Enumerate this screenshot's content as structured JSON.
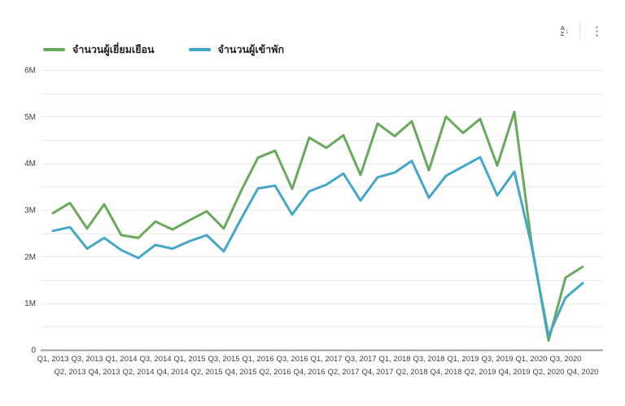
{
  "toolbar": {
    "sort_icon": {
      "top": "A",
      "bottom": "Z",
      "arrow": "↓"
    },
    "menu_icon": "⋮"
  },
  "legend": {
    "items": [
      {
        "label": "จำนวนผู้เยี่ยมเยือน",
        "color": "#68a95c"
      },
      {
        "label": "จำนวนผู้เข้าพัก",
        "color": "#45a7c7"
      }
    ]
  },
  "chart_data": {
    "type": "line",
    "title": "",
    "xlabel": "",
    "ylabel": "",
    "grid": true,
    "grid_interval": 500000,
    "legend_position": "top-left",
    "ylim": [
      0,
      6000000
    ],
    "y_ticks": [
      {
        "value": 0,
        "label": "0"
      },
      {
        "value": 1000000,
        "label": "1M"
      },
      {
        "value": 2000000,
        "label": "2M"
      },
      {
        "value": 3000000,
        "label": "3M"
      },
      {
        "value": 4000000,
        "label": "4M"
      },
      {
        "value": 5000000,
        "label": "5M"
      },
      {
        "value": 6000000,
        "label": "6M"
      }
    ],
    "categories": [
      "Q1, 2013",
      "Q2, 2013",
      "Q3, 2013",
      "Q4, 2013",
      "Q1, 2014",
      "Q2, 2014",
      "Q3, 2014",
      "Q4, 2014",
      "Q1, 2015",
      "Q2, 2015",
      "Q3, 2015",
      "Q4, 2015",
      "Q1, 2016",
      "Q2, 2016",
      "Q3, 2016",
      "Q4, 2016",
      "Q1, 2017",
      "Q2, 2017",
      "Q3, 2017",
      "Q4, 2017",
      "Q1, 2018",
      "Q2, 2018",
      "Q3, 2018",
      "Q4, 2018",
      "Q1, 2019",
      "Q2, 2019",
      "Q3, 2019",
      "Q4, 2019",
      "Q1, 2020",
      "Q2, 2020",
      "Q3, 2020",
      "Q4, 2020"
    ],
    "series": [
      {
        "name": "จำนวนผู้เยี่ยมเยือน",
        "color": "#68a95c",
        "values": [
          2930000,
          3150000,
          2600000,
          3120000,
          2460000,
          2400000,
          2750000,
          2580000,
          2780000,
          2970000,
          2600000,
          3400000,
          4120000,
          4270000,
          3450000,
          4550000,
          4330000,
          4600000,
          3750000,
          4850000,
          4580000,
          4900000,
          3850000,
          5000000,
          4650000,
          4950000,
          3950000,
          5100000,
          2300000,
          200000,
          1550000,
          1780000
        ]
      },
      {
        "name": "จำนวนผู้เข้าพัก",
        "color": "#45a7c7",
        "values": [
          2550000,
          2630000,
          2170000,
          2400000,
          2140000,
          1970000,
          2250000,
          2170000,
          2330000,
          2460000,
          2110000,
          2800000,
          3460000,
          3520000,
          2900000,
          3400000,
          3540000,
          3780000,
          3200000,
          3700000,
          3800000,
          4050000,
          3260000,
          3730000,
          3930000,
          4130000,
          3310000,
          3820000,
          2250000,
          300000,
          1120000,
          1430000
        ]
      }
    ]
  }
}
